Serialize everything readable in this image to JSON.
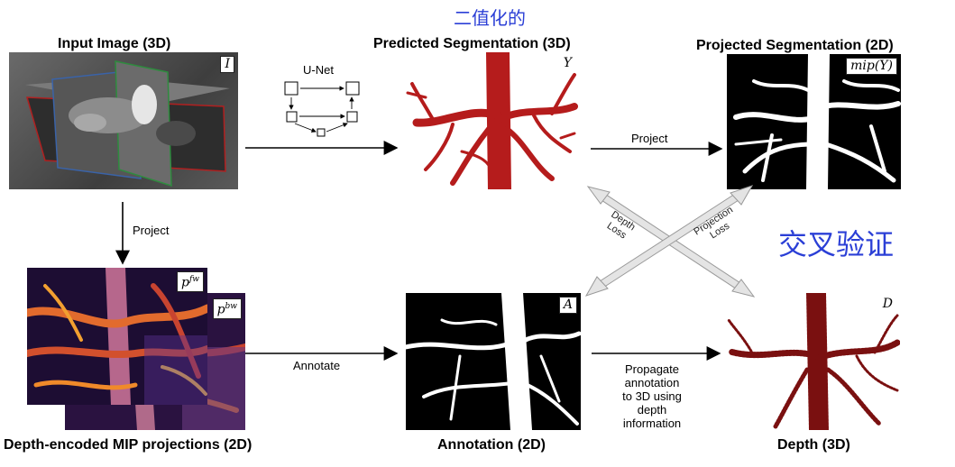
{
  "chinese": {
    "top": "二值化的",
    "cross": "交叉验证"
  },
  "titles": {
    "input": "Input Image (3D)",
    "predicted": "Predicted Segmentation (3D)",
    "projected": "Projected Segmentation (2D)",
    "depth_mip": "Depth-encoded MIP projections (2D)",
    "annotation": "Annotation (2D)",
    "depth": "Depth (3D)"
  },
  "tags": {
    "input": "I",
    "predicted": "Y",
    "projected": "mip(Y)",
    "pfw": "p",
    "pfw_sup": "fw",
    "pbw": "p",
    "pbw_sup": "bw",
    "annotation": "A",
    "depth": "D"
  },
  "edges": {
    "unet": "U-Net",
    "project_top": "Project",
    "project_left": "Project",
    "annotate": "Annotate",
    "propagate": [
      "Propagate",
      "annotation",
      "to 3D using",
      "depth",
      "information"
    ],
    "depth_loss": [
      "Depth",
      "Loss"
    ],
    "projection_loss": [
      "Projection",
      "Loss"
    ]
  }
}
